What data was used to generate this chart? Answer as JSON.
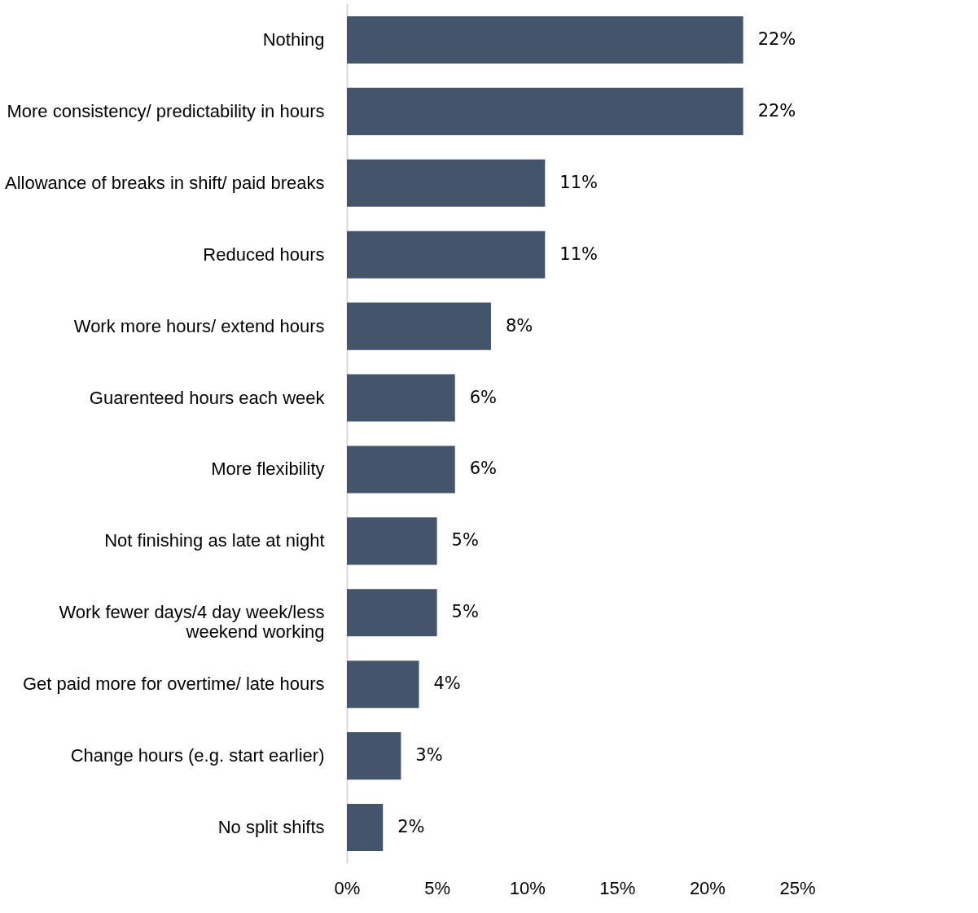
{
  "chart_data": {
    "type": "bar",
    "orientation": "horizontal",
    "categories": [
      "Nothing",
      "More consistency/ predictability in hours",
      "Allowance of breaks in shift/ paid breaks",
      "Reduced hours",
      "Work more hours/ extend hours",
      "Guarenteed hours each week",
      "More flexibility",
      "Not finishing as late at night",
      "Work fewer days/4 day week/less weekend working",
      "Get paid more for overtime/ late hours",
      "Change hours (e.g. start earlier)",
      "No split shifts"
    ],
    "values": [
      22,
      22,
      11,
      11,
      8,
      6,
      6,
      5,
      5,
      4,
      3,
      2
    ],
    "value_labels": [
      "22%",
      "22%",
      "11%",
      "11%",
      "8%",
      "6%",
      "6%",
      "5%",
      "5%",
      "4%",
      "3%",
      "2%"
    ],
    "color": "#44546a",
    "xlim": [
      0,
      25
    ],
    "xticks": [
      {
        "value": 0,
        "label": "0%"
      },
      {
        "value": 5,
        "label": "5%"
      },
      {
        "value": 10,
        "label": "10%"
      },
      {
        "value": 15,
        "label": "15%"
      },
      {
        "value": 20,
        "label": "20%"
      },
      {
        "value": 25,
        "label": "25%"
      }
    ],
    "grid": false
  }
}
